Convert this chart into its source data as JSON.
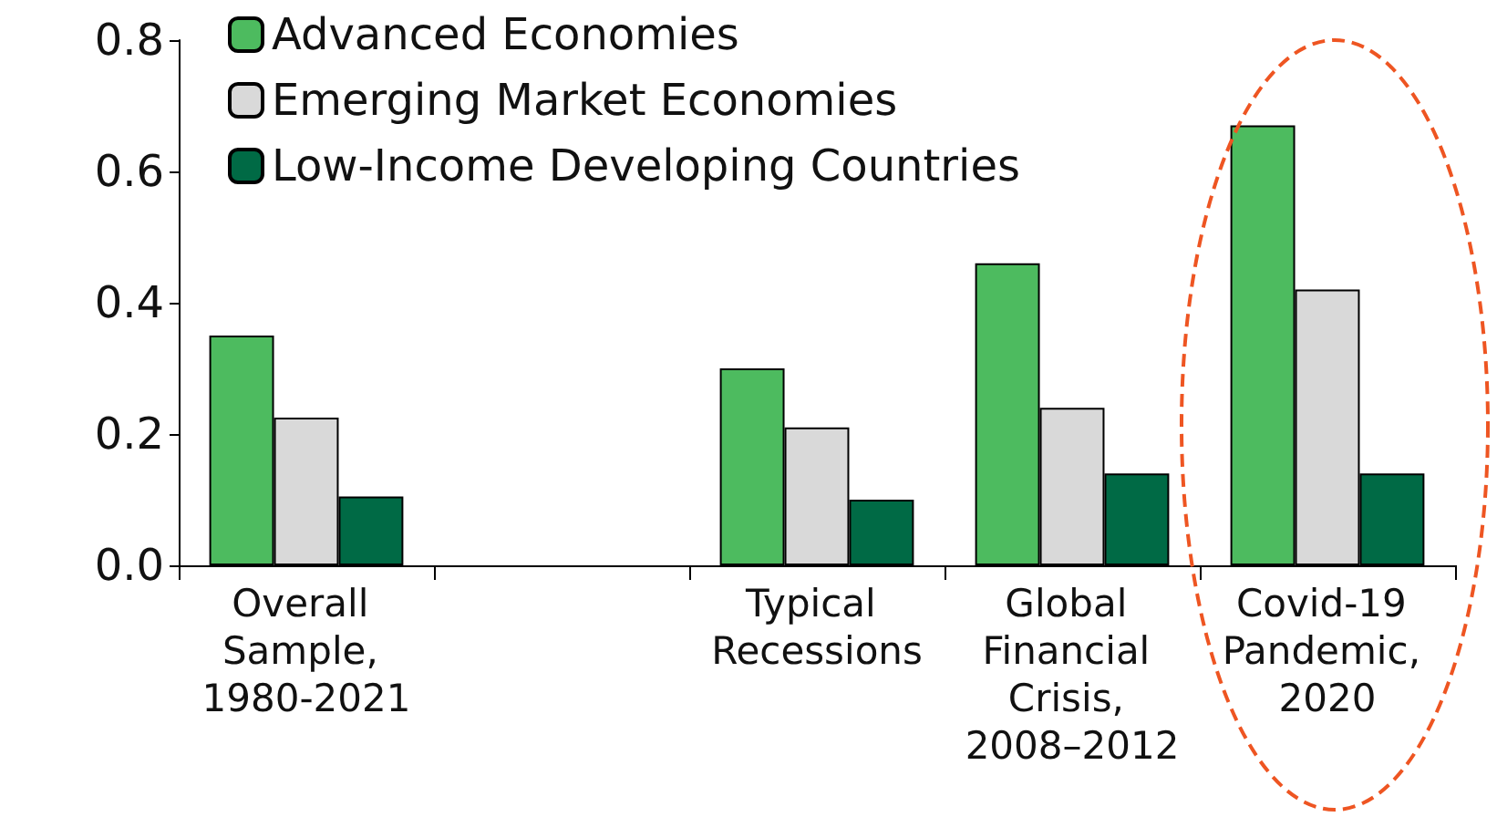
{
  "chart_data": {
    "type": "bar",
    "categories": [
      "Overall Sample, 1980-2021",
      null,
      "Typical Recessions",
      "Global Financial Crisis, 2008–2012",
      "Covid-19 Pandemic, 2020"
    ],
    "series": [
      {
        "name": "Advanced Economies",
        "color": "#4dbb5f",
        "values": [
          0.35,
          null,
          0.3,
          0.46,
          0.67
        ]
      },
      {
        "name": "Emerging Market Economies",
        "color": "#d9d9d9",
        "values": [
          0.225,
          null,
          0.21,
          0.24,
          0.42
        ]
      },
      {
        "name": "Low-Income Developing Countries",
        "color": "#006a45",
        "values": [
          0.105,
          null,
          0.1,
          0.14,
          0.14
        ]
      }
    ],
    "ylim": [
      0,
      0.8
    ],
    "yticks": [
      {
        "value": 0,
        "label": "0.0"
      },
      0.2,
      0.4,
      0.6,
      0.8
    ],
    "grid": false,
    "legend": "top left"
  }
}
